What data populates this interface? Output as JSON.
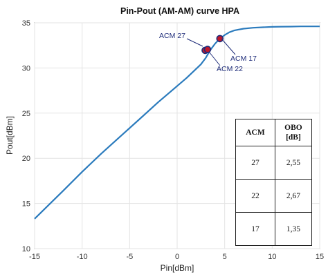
{
  "chart_data": {
    "type": "line",
    "title": "Pin-Pout (AM-AM) curve HPA",
    "xlabel": "Pin[dBm]",
    "ylabel": "Pout[dBm]",
    "xlim": [
      -15,
      15
    ],
    "ylim": [
      10,
      35
    ],
    "x_ticks": [
      -15,
      -10,
      -5,
      0,
      5,
      10,
      15
    ],
    "y_ticks": [
      10,
      15,
      20,
      25,
      30,
      35
    ],
    "grid": true,
    "series": [
      {
        "color": "#2b7bbd",
        "x": [
          -15,
          -12,
          -10,
          -8,
          -6,
          -4,
          -2,
          0,
          1,
          2,
          2.5,
          3,
          3.5,
          4,
          4.5,
          5,
          5.5,
          6,
          7,
          8,
          9,
          10,
          11,
          12,
          13,
          14,
          15
        ],
        "y": [
          13.3,
          16.4,
          18.5,
          20.5,
          22.4,
          24.3,
          26.2,
          28.0,
          28.9,
          29.9,
          30.4,
          31.1,
          32.0,
          32.7,
          33.25,
          33.65,
          33.95,
          34.15,
          34.35,
          34.45,
          34.5,
          34.55,
          34.57,
          34.58,
          34.6,
          34.6,
          34.6
        ]
      }
    ],
    "markers": [
      {
        "label": "ACM 27",
        "x": 2.95,
        "y": 31.95
      },
      {
        "label": "ACM 22",
        "x": 3.2,
        "y": 32.05
      },
      {
        "label": "ACM 17",
        "x": 4.5,
        "y": 33.25
      }
    ],
    "marker_colors": {
      "fill": "#c0182b",
      "edge": "#1f2d7a"
    }
  },
  "table": {
    "headers": [
      "ACM",
      "OBO",
      "[dB]"
    ],
    "rows": [
      {
        "acm": "27",
        "obo": "2,55"
      },
      {
        "acm": "22",
        "obo": "2,67"
      },
      {
        "acm": "17",
        "obo": "1,35"
      }
    ]
  }
}
